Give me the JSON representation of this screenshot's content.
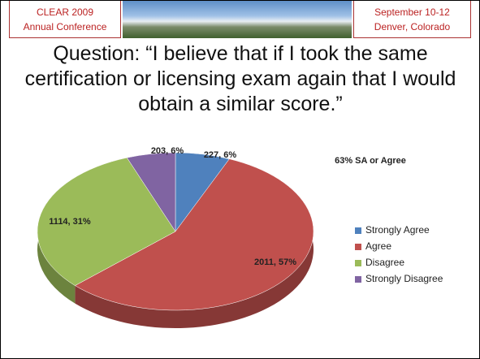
{
  "header": {
    "left": [
      "CLEAR 2009",
      "Annual Conference"
    ],
    "right": [
      "September 10-12",
      "Denver, Colorado"
    ]
  },
  "chart_data": {
    "type": "pie",
    "title": "Question: “I believe that if I took the same certification or licensing exam again that I would obtain a similar score.”",
    "annotation": "63% SA or Agree",
    "categories": [
      "Strongly Agree",
      "Agree",
      "Disagree",
      "Strongly Disagree"
    ],
    "values": [
      227,
      2011,
      1114,
      203
    ],
    "value_labels": [
      "227, 6%",
      "2011, 57%",
      "1114, 31%",
      "203, 6%"
    ],
    "colors": [
      "#4f81bd",
      "#c0504d",
      "#9bbb59",
      "#8064a2"
    ],
    "legend": "right"
  }
}
